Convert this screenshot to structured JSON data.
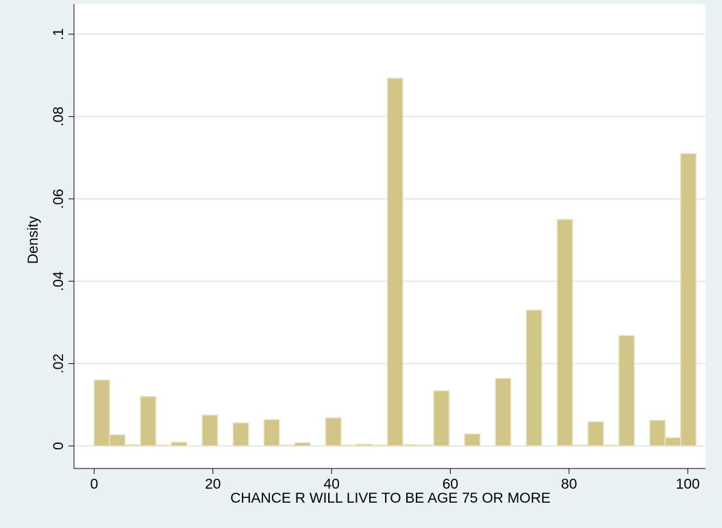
{
  "chart_data": {
    "type": "histogram",
    "xlabel": "CHANCE R WILL LIVE TO BE AGE 75 OR MORE",
    "ylabel": "Density",
    "bins": [
      0,
      2.6,
      5.2,
      7.8,
      10.4,
      13,
      15.6,
      18.2,
      20.8,
      23.4,
      26,
      28.6,
      31.2,
      33.8,
      36.4,
      39,
      41.6,
      44.2,
      46.8,
      49.4,
      52,
      54.6,
      57.2,
      59.8,
      62.4,
      65,
      67.6,
      70.2,
      72.8,
      75.4,
      78,
      80.6,
      83.2,
      85.8,
      88.4,
      91,
      93.6,
      96.2,
      98.8,
      101.4
    ],
    "values": [
      0.016,
      0.0027,
      0.0003,
      0.012,
      0.0002,
      0.0009,
      0,
      0.0075,
      0,
      0.0056,
      0,
      0.0064,
      0.0002,
      0.0008,
      0,
      0.0068,
      0.0002,
      0.0004,
      0.0002,
      0.0893,
      0.0003,
      0.0002,
      0.0134,
      0,
      0.0029,
      0,
      0.0164,
      0,
      0.033,
      0,
      0.055,
      0.0002,
      0.0059,
      0.0002,
      0.0268,
      0,
      0.0062,
      0.002,
      0.071
    ],
    "color": "#d1c587",
    "xlim": [
      -3.4,
      103
    ],
    "ylim": [
      0,
      0.1
    ],
    "xticks": [
      0,
      20,
      40,
      60,
      80,
      100
    ],
    "yticks": [
      0,
      {
        "value": 0.02,
        "label": ".02"
      },
      {
        "value": 0.04,
        "label": ".04"
      },
      {
        "value": 0.06,
        "label": ".06"
      },
      {
        "value": 0.08,
        "label": ".08"
      },
      {
        "value": 0.1,
        "label": ".1"
      }
    ],
    "grid": true
  }
}
